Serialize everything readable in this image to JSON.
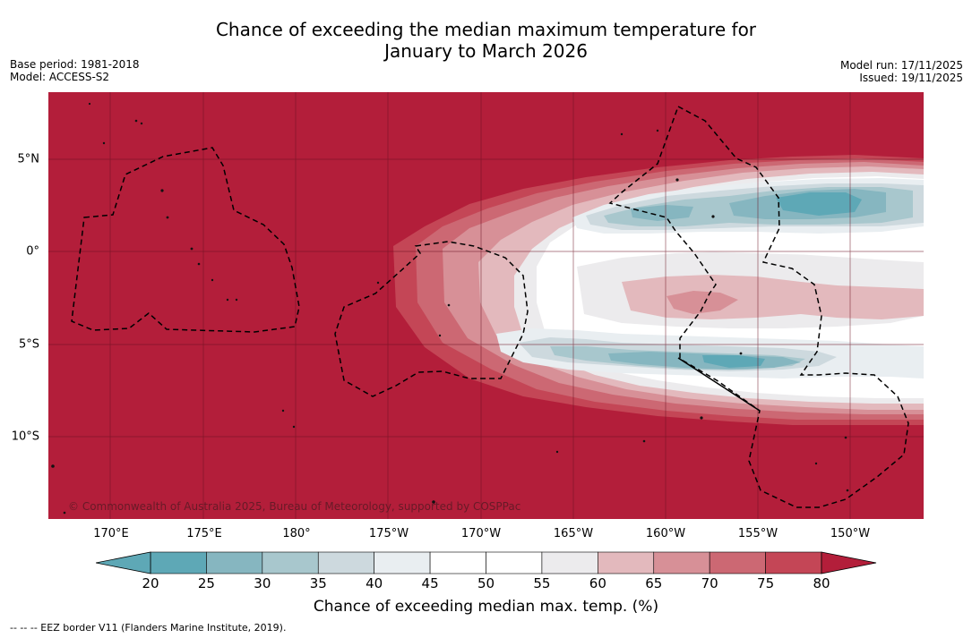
{
  "title": {
    "line1": "Chance of exceeding the median maximum temperature for",
    "line2": "January to March 2026"
  },
  "meta": {
    "base_period": "Base period: 1981-2018",
    "model": "Model: ACCESS-S2",
    "model_run": "Model run: 17/11/2025",
    "issued": "Issued: 19/11/2025"
  },
  "map": {
    "longitude_labels": [
      "170°E",
      "175°E",
      "180°",
      "175°W",
      "170°W",
      "165°W",
      "160°W",
      "155°W",
      "150°W"
    ],
    "latitude_labels": [
      "5°N",
      "0°",
      "5°S",
      "10°S"
    ],
    "copyright": "© Commonwealth of Australia 2025, Bureau of Meteorology, supported by COSPPac",
    "colors": {
      "p80_plus": "#b31e3a",
      "p75_80": "#c44656",
      "p70_75": "#cc6873",
      "p65_70": "#d79097",
      "p60_65": "#e3b9bd",
      "p55_60": "#ecebed",
      "p45_55": "#ffffff",
      "p40_45": "#e9eef1",
      "p35_40": "#cdd9de",
      "p30_35": "#a8c7cd",
      "p25_30": "#86b6c0",
      "p20_25": "#5ea8b6"
    }
  },
  "colorbar": {
    "title": "Chance of exceeding median max. temp. (%)",
    "ticks": [
      "20",
      "25",
      "30",
      "35",
      "40",
      "45",
      "50",
      "55",
      "60",
      "65",
      "70",
      "75",
      "80"
    ],
    "colors": [
      "#5ea8b6",
      "#86b6c0",
      "#a8c7cd",
      "#cdd9de",
      "#e9eef1",
      "#ffffff",
      "#ffffff",
      "#ecebed",
      "#e3b9bd",
      "#d79097",
      "#cc6873",
      "#c44656",
      "#b31e3a"
    ]
  },
  "footer": "--  --  -- EEZ border V11 (Flanders Marine Institute, 2019)."
}
